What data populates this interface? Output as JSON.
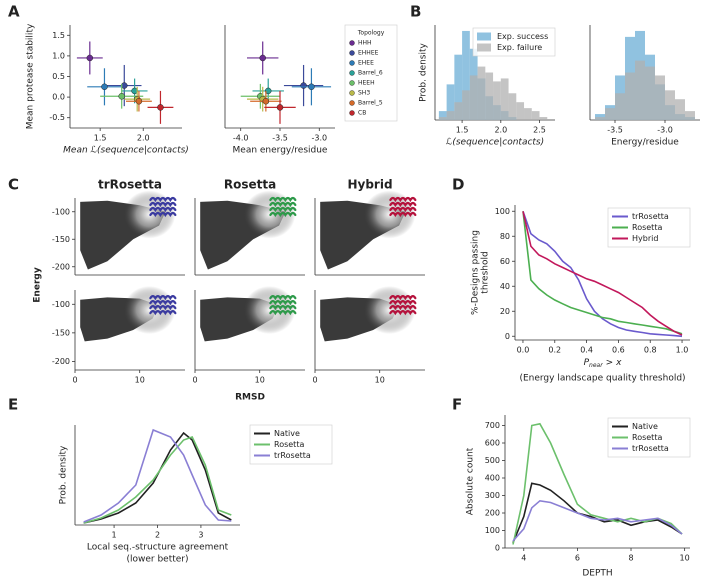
{
  "panel_labels": [
    "A",
    "B",
    "C",
    "D",
    "E",
    "F"
  ],
  "chart_data": [
    {
      "type": "errorbar_scatter",
      "ylabel": "Mean protease stability",
      "xlabel": "Mean ℒ(sequence|contacts)",
      "xlim": [
        1.15,
        2.45
      ],
      "ylim": [
        -0.75,
        1.75
      ],
      "xticks": [
        1.5,
        {
          "value": 2.0,
          "label": "2.0"
        }
      ],
      "yticks": [
        -0.5,
        {
          "value": 0,
          "label": "0.0"
        },
        0.5,
        {
          "value": 1.0,
          "label": "1.0"
        },
        1.5
      ],
      "series": [
        {
          "color": "#6a2c91",
          "x": [
            1.38
          ],
          "values": [
            0.95
          ],
          "xerr": [
            0.15
          ],
          "yerr": [
            0.4
          ]
        },
        {
          "color": "#3b4a9a",
          "x": [
            1.78
          ],
          "values": [
            0.28
          ],
          "xerr": [
            0.2
          ],
          "yerr": [
            0.5
          ]
        },
        {
          "color": "#2d7bb6",
          "x": [
            1.55
          ],
          "values": [
            0.25
          ],
          "xerr": [
            0.2
          ],
          "yerr": [
            0.45
          ]
        },
        {
          "color": "#2aa198",
          "x": [
            1.9
          ],
          "values": [
            0.15
          ],
          "xerr": [
            0.15
          ],
          "yerr": [
            0.3
          ]
        },
        {
          "color": "#6cbf6a",
          "x": [
            1.75
          ],
          "values": [
            0.02
          ],
          "xerr": [
            0.25
          ],
          "yerr": [
            0.3
          ]
        },
        {
          "color": "#b8b84a",
          "x": [
            1.93
          ],
          "values": [
            -0.05
          ],
          "xerr": [
            0.15
          ],
          "yerr": [
            0.3
          ]
        },
        {
          "color": "#d46a2a",
          "x": [
            1.95
          ],
          "values": [
            -0.1
          ],
          "xerr": [
            0.15
          ],
          "yerr": [
            0.25
          ]
        },
        {
          "color": "#c0272d",
          "x": [
            2.2
          ],
          "values": [
            -0.25
          ],
          "xerr": [
            0.15
          ],
          "yerr": [
            0.4
          ]
        }
      ]
    },
    {
      "type": "errorbar_scatter",
      "xlabel": "Mean energy/residue",
      "legend": "outside right",
      "legend_title": "Topology",
      "xlim": [
        -4.2,
        -2.8
      ],
      "ylim": [
        -0.75,
        1.75
      ],
      "xticks": [
        {
          "value": -4.0,
          "label": "-4.0"
        },
        -3.5,
        {
          "value": -3.0,
          "label": "-3.0"
        }
      ],
      "series": [
        {
          "name": "HHH",
          "color": "#6a2c91",
          "x": [
            -3.72
          ],
          "values": [
            0.95
          ],
          "xerr": [
            0.2
          ],
          "yerr": [
            0.4
          ]
        },
        {
          "name": "EHHEE",
          "color": "#3b4a9a",
          "x": [
            -3.2
          ],
          "values": [
            0.28
          ],
          "xerr": [
            0.25
          ],
          "yerr": [
            0.5
          ]
        },
        {
          "name": "EHEE",
          "color": "#2d7bb6",
          "x": [
            -3.1
          ],
          "values": [
            0.25
          ],
          "xerr": [
            0.25
          ],
          "yerr": [
            0.45
          ]
        },
        {
          "name": "Barrel_6",
          "color": "#2aa198",
          "x": [
            -3.65
          ],
          "values": [
            0.15
          ],
          "xerr": [
            0.2
          ],
          "yerr": [
            0.3
          ]
        },
        {
          "name": "HEEH",
          "color": "#6cbf6a",
          "x": [
            -3.75
          ],
          "values": [
            0.02
          ],
          "xerr": [
            0.25
          ],
          "yerr": [
            0.3
          ]
        },
        {
          "name": "SH3",
          "color": "#b8b84a",
          "x": [
            -3.72
          ],
          "values": [
            -0.05
          ],
          "xerr": [
            0.2
          ],
          "yerr": [
            0.3
          ]
        },
        {
          "name": "Barrel_5",
          "color": "#d46a2a",
          "x": [
            -3.68
          ],
          "values": [
            -0.1
          ],
          "xerr": [
            0.2
          ],
          "yerr": [
            0.25
          ]
        },
        {
          "name": "CB",
          "color": "#c0272d",
          "x": [
            -3.5
          ],
          "values": [
            -0.25
          ],
          "xerr": [
            0.2
          ],
          "yerr": [
            0.4
          ]
        }
      ]
    },
    {
      "type": "histogram",
      "ylabel": "Prob. density",
      "xlabel": "ℒ(sequence|contacts)",
      "legend": "upper right",
      "xlim": [
        1.15,
        2.7
      ],
      "ylim": [
        0,
        3.2
      ],
      "xticks": [
        1.5,
        {
          "value": 2.0,
          "label": "2.0"
        },
        2.5
      ],
      "bins": [
        1.2,
        1.3,
        1.4,
        1.5,
        1.6,
        1.7,
        1.8,
        1.9,
        2.0,
        2.1,
        2.2,
        2.3,
        2.4,
        2.5,
        2.6
      ],
      "series": [
        {
          "name": "Exp. success",
          "color": "#6baed6",
          "values": [
            0.3,
            1.2,
            2.2,
            3.0,
            2.4,
            1.4,
            0.8,
            0.5,
            0.3,
            0.1,
            0,
            0,
            0,
            0
          ]
        },
        {
          "name": "Exp. failure",
          "color": "#b0b0b0",
          "values": [
            0.1,
            0.3,
            0.6,
            1.0,
            1.5,
            1.8,
            1.6,
            1.3,
            1.4,
            0.9,
            0.6,
            0.4,
            0.3,
            0.1
          ]
        }
      ]
    },
    {
      "type": "histogram",
      "xlabel": "Energy/residue",
      "xlim": [
        -3.75,
        -2.65
      ],
      "ylim": [
        0,
        3.2
      ],
      "xticks": [
        -3.5,
        {
          "value": -3.0,
          "label": "-3.0"
        }
      ],
      "bins": [
        -3.7,
        -3.6,
        -3.5,
        -3.4,
        -3.3,
        -3.2,
        -3.1,
        -3.0,
        -2.9,
        -2.8,
        -2.7
      ],
      "series": [
        {
          "color": "#6baed6",
          "values": [
            0.2,
            0.5,
            1.5,
            2.8,
            3.0,
            2.2,
            1.2,
            0.5,
            0.2,
            0.1
          ]
        },
        {
          "color": "#b0b0b0",
          "values": [
            0.1,
            0.4,
            0.9,
            1.6,
            2.0,
            1.8,
            1.5,
            1.0,
            0.7,
            0.3
          ]
        }
      ]
    },
    {
      "type": "landscape",
      "title": "trRosetta",
      "color": "#3b3ba0",
      "ylabel": "Energy",
      "xlim": [
        0,
        17
      ],
      "ylim": [
        -215,
        -75
      ],
      "yticks": [
        -100,
        -150,
        -200
      ]
    },
    {
      "type": "landscape",
      "title": "Rosetta",
      "color": "#2e9a4a",
      "xlim": [
        0,
        17
      ],
      "ylim": [
        -215,
        -75
      ]
    },
    {
      "type": "landscape",
      "title": "Hybrid",
      "color": "#b5123c",
      "xlim": [
        0,
        17
      ],
      "ylim": [
        -215,
        -75
      ]
    },
    {
      "type": "landscape",
      "color": "#3b3ba0",
      "xlim": [
        0,
        17
      ],
      "ylim": [
        -215,
        -75
      ],
      "yticks": [
        -100,
        -150,
        -200
      ],
      "xticks": [
        0,
        10
      ]
    },
    {
      "type": "landscape",
      "color": "#2e9a4a",
      "xlabel": "RMSD",
      "xlim": [
        0,
        17
      ],
      "ylim": [
        -215,
        -75
      ],
      "xticks": [
        0,
        10
      ]
    },
    {
      "type": "landscape",
      "color": "#b5123c",
      "xlim": [
        0,
        17
      ],
      "ylim": [
        -215,
        -75
      ],
      "xticks": [
        0,
        10
      ]
    },
    {
      "type": "line",
      "ylabel": [
        "%-Designs passing",
        "threshold"
      ],
      "xlabel_math": {
        "base": "P",
        "sub": "near",
        "rest": "> x"
      },
      "xlabel": "(Energy landscape quality threshold)",
      "legend": "upper right",
      "xlim": [
        -0.05,
        1.05
      ],
      "ylim": [
        -3,
        105
      ],
      "xticks": [
        {
          "value": 0,
          "label": "0.0"
        },
        0.2,
        0.4,
        0.6,
        0.8,
        {
          "value": 1,
          "label": "1.0"
        }
      ],
      "yticks": [
        0,
        20,
        40,
        60,
        80,
        100
      ],
      "x": [
        0,
        0.05,
        0.1,
        0.15,
        0.2,
        0.25,
        0.3,
        0.35,
        0.4,
        0.45,
        0.5,
        0.55,
        0.6,
        0.65,
        0.7,
        0.75,
        0.8,
        0.85,
        0.9,
        0.95,
        1.0
      ],
      "series": [
        {
          "name": "trRosetta",
          "color": "#6a5acd",
          "values": [
            100,
            82,
            77,
            74,
            68,
            60,
            55,
            45,
            30,
            20,
            14,
            10,
            7,
            5,
            4,
            3,
            2,
            1.5,
            1,
            0.5,
            0
          ]
        },
        {
          "name": "Rosetta",
          "color": "#4caf50",
          "values": [
            100,
            45,
            38,
            33,
            29,
            26,
            23,
            21,
            19,
            17,
            15,
            14,
            12,
            11,
            10,
            9,
            8,
            7,
            6,
            4,
            2
          ]
        },
        {
          "name": "Hybrid",
          "color": "#c2185b",
          "values": [
            100,
            72,
            65,
            62,
            58,
            55,
            52,
            49,
            46,
            44,
            41,
            38,
            35,
            31,
            27,
            23,
            17,
            12,
            8,
            4,
            1
          ]
        }
      ]
    },
    {
      "type": "line",
      "ylabel": "Prob. density",
      "xlabel": [
        "Local seq.-structure agreement",
        "(lower better)"
      ],
      "legend": "outside right",
      "xlim": [
        0.1,
        3.9
      ],
      "ylim": [
        0,
        1
      ],
      "xticks": [
        1,
        2,
        3
      ],
      "x": [
        0.3,
        0.7,
        1.1,
        1.5,
        1.9,
        2.3,
        2.6,
        2.8,
        3.1,
        3.4,
        3.7
      ],
      "series": [
        {
          "name": "Native",
          "color": "#222222",
          "values": [
            0.02,
            0.06,
            0.12,
            0.22,
            0.42,
            0.75,
            0.92,
            0.85,
            0.55,
            0.12,
            0.05
          ]
        },
        {
          "name": "Rosetta",
          "color": "#6cc06c",
          "values": [
            0.02,
            0.07,
            0.15,
            0.28,
            0.45,
            0.7,
            0.85,
            0.88,
            0.6,
            0.15,
            0.1
          ]
        },
        {
          "name": "trRosetta",
          "color": "#8a7fd4",
          "values": [
            0.03,
            0.1,
            0.22,
            0.4,
            0.95,
            0.88,
            0.7,
            0.5,
            0.2,
            0.05,
            0.04
          ]
        }
      ]
    },
    {
      "type": "line",
      "ylabel": "Absolute count",
      "xlabel": "DEPTH",
      "legend": "upper right",
      "xlim": [
        3.3,
        10.2
      ],
      "ylim": [
        0,
        760
      ],
      "xticks": [
        4,
        6,
        8,
        10
      ],
      "yticks": [
        0,
        100,
        200,
        300,
        400,
        500,
        600,
        700
      ],
      "x": [
        3.6,
        4.0,
        4.3,
        4.6,
        5.0,
        5.5,
        6.0,
        6.5,
        7.0,
        7.5,
        8.0,
        8.5,
        9.0,
        9.5,
        9.9
      ],
      "series": [
        {
          "name": "Native",
          "color": "#222222",
          "values": [
            30,
            180,
            370,
            360,
            330,
            270,
            200,
            180,
            150,
            160,
            130,
            150,
            160,
            120,
            80
          ]
        },
        {
          "name": "Rosetta",
          "color": "#6cc06c",
          "values": [
            20,
            300,
            700,
            710,
            600,
            420,
            250,
            190,
            170,
            150,
            170,
            150,
            170,
            140,
            80
          ]
        },
        {
          "name": "trRosetta",
          "color": "#8a7fd4",
          "values": [
            40,
            110,
            230,
            270,
            260,
            230,
            200,
            170,
            160,
            170,
            150,
            160,
            170,
            130,
            80
          ]
        }
      ]
    }
  ]
}
